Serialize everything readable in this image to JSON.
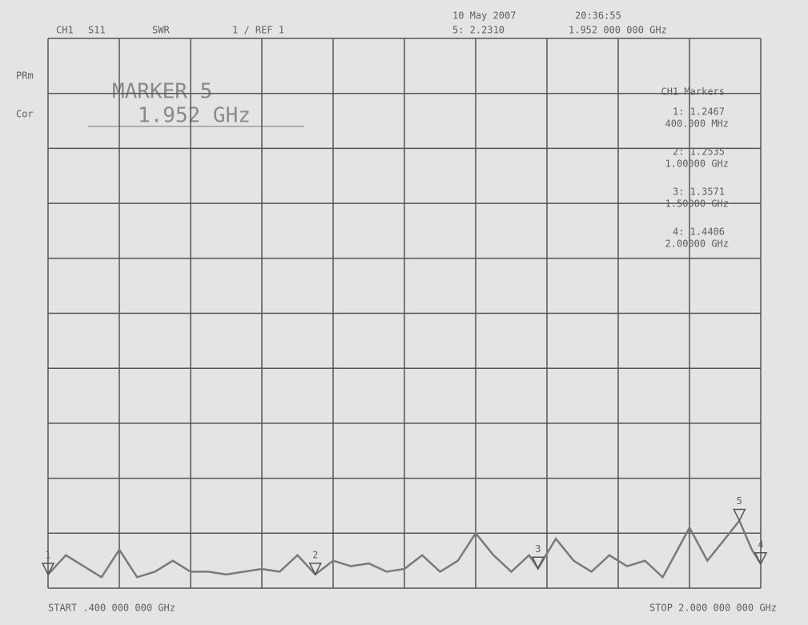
{
  "header": {
    "channel": "CH1",
    "param": "S11",
    "format": "SWR",
    "scale": "1 / REF 1",
    "date": "10 May 2007",
    "time": "20:36:55",
    "active_marker": "5: 2.2310",
    "active_freq": "1.952 000 000 GHz"
  },
  "side_labels": [
    "PRm",
    "Cor"
  ],
  "marker_box": {
    "title": "MARKER 5",
    "freq": "1.952 GHz"
  },
  "markers_title": "CH1 Markers",
  "marker_list": [
    {
      "label": "1: 1.2467",
      "freq": "400.000 MHz"
    },
    {
      "label": "2: 1.2535",
      "freq": "1.00000 GHz"
    },
    {
      "label": "3: 1.3571",
      "freq": "1.50000 GHz"
    },
    {
      "label": "4: 1.4406",
      "freq": "2.00000 GHz"
    }
  ],
  "footer": {
    "start": "START .400 000 000 GHz",
    "stop": "STOP 2.000 000 000 GHz"
  },
  "chart_data": {
    "type": "line",
    "xlim": [
      0.4,
      2
    ],
    "ylim": [
      1,
      11
    ],
    "grid": true,
    "color": "#7a7a7a",
    "x": [
      0.4,
      0.44,
      0.48,
      0.52,
      0.56,
      0.6,
      0.64,
      0.68,
      0.72,
      0.76,
      0.8,
      0.84,
      0.88,
      0.92,
      0.96,
      1.0,
      1.04,
      1.08,
      1.12,
      1.16,
      1.2,
      1.24,
      1.28,
      1.32,
      1.36,
      1.4,
      1.44,
      1.48,
      1.5,
      1.54,
      1.58,
      1.62,
      1.66,
      1.7,
      1.74,
      1.78,
      1.8,
      1.84,
      1.88,
      1.92,
      1.952,
      1.98,
      2.0
    ],
    "values": [
      1.25,
      1.6,
      1.4,
      1.2,
      1.7,
      1.2,
      1.3,
      1.5,
      1.3,
      1.3,
      1.25,
      1.3,
      1.35,
      1.3,
      1.6,
      1.25,
      1.5,
      1.4,
      1.45,
      1.3,
      1.35,
      1.6,
      1.3,
      1.5,
      2.0,
      1.6,
      1.3,
      1.6,
      1.36,
      1.9,
      1.5,
      1.3,
      1.6,
      1.4,
      1.5,
      1.2,
      1.5,
      2.1,
      1.5,
      1.9,
      2.23,
      1.7,
      1.44
    ],
    "markers": [
      {
        "num": "1",
        "x": 0.4
      },
      {
        "num": "2",
        "x": 1.0
      },
      {
        "num": "3",
        "x": 1.5
      },
      {
        "num": "4",
        "x": 2.0
      },
      {
        "num": "5",
        "x": 1.952
      }
    ]
  }
}
